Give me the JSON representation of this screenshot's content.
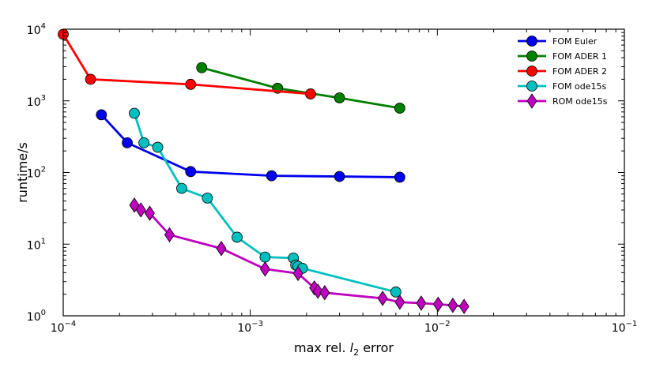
{
  "chart_data": {
    "type": "line",
    "title": "",
    "xlabel": "max rel. l2 error",
    "ylabel": "runtime/s",
    "xscale": "log",
    "yscale": "log",
    "xlim": [
      0.0001,
      0.1
    ],
    "ylim": [
      1,
      10000
    ],
    "x_tick_labels": [
      {
        "value": 0.0001,
        "base": "10",
        "exp": "−4"
      },
      {
        "value": 0.001,
        "base": "10",
        "exp": "−3"
      },
      {
        "value": 0.01,
        "base": "10",
        "exp": "−2"
      },
      {
        "value": 0.1,
        "base": "10",
        "exp": "−1"
      }
    ],
    "y_tick_labels": [
      {
        "value": 1,
        "base": "10",
        "exp": "0"
      },
      {
        "value": 10,
        "base": "10",
        "exp": "1"
      },
      {
        "value": 100,
        "base": "10",
        "exp": "2"
      },
      {
        "value": 1000,
        "base": "10",
        "exp": "3"
      },
      {
        "value": 10000,
        "base": "10",
        "exp": "4"
      }
    ],
    "grid": false,
    "legend_position": "top-right",
    "series": [
      {
        "name": "FOM Euler",
        "color": "#0000ee",
        "marker": "circle",
        "x": [
          0.00016,
          0.00022,
          0.00048,
          0.0013,
          0.003,
          0.0063
        ],
        "y": [
          640,
          260,
          103,
          90,
          88,
          86
        ]
      },
      {
        "name": "FOM ADER 1",
        "color": "#008000",
        "marker": "circle",
        "x": [
          0.00055,
          0.0014,
          0.003,
          0.0063
        ],
        "y": [
          2900,
          1500,
          1100,
          790
        ]
      },
      {
        "name": "FOM ADER 2",
        "color": "#ff0000",
        "marker": "circle",
        "x": [
          0.0001,
          0.00014,
          0.00048,
          0.0021
        ],
        "y": [
          8500,
          2000,
          1700,
          1250
        ]
      },
      {
        "name": "FOM ode15s",
        "color": "#00bfbf",
        "marker": "circle",
        "x": [
          0.00024,
          0.00027,
          0.00032,
          0.00043,
          0.00059,
          0.00085,
          0.0012,
          0.0017,
          0.00175,
          0.0018,
          0.0019,
          0.006
        ],
        "y": [
          670,
          260,
          225,
          60,
          44,
          12.5,
          6.6,
          6.4,
          5.1,
          4.9,
          4.6,
          2.15
        ]
      },
      {
        "name": "ROM ode15s",
        "color": "#bf00bf",
        "marker": "diamond",
        "x": [
          0.00024,
          0.00026,
          0.00029,
          0.00037,
          0.0007,
          0.0012,
          0.0018,
          0.0022,
          0.0023,
          0.0025,
          0.0051,
          0.0063,
          0.0082,
          0.0101,
          0.0121,
          0.0139
        ],
        "y": [
          35,
          30,
          27,
          13.5,
          8.7,
          4.5,
          3.9,
          2.45,
          2.2,
          2.1,
          1.75,
          1.55,
          1.5,
          1.45,
          1.4,
          1.35
        ]
      }
    ]
  }
}
